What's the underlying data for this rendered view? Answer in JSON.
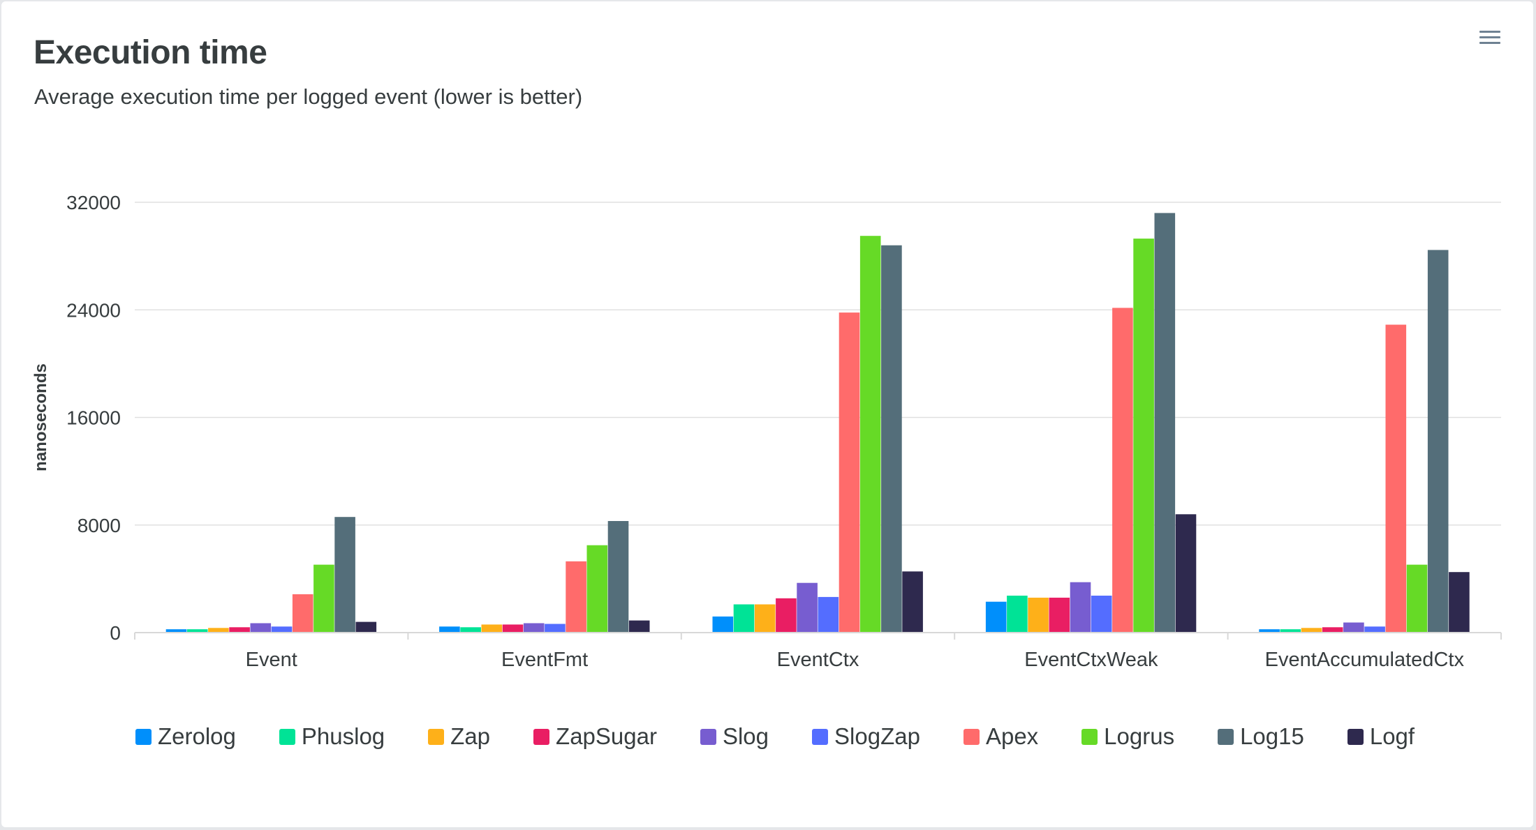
{
  "title": "Execution time",
  "subtitle": "Average execution time per logged event (lower is better)",
  "menu_icon": "hamburger-menu-icon",
  "chart_data": {
    "type": "bar",
    "categories": [
      "Event",
      "EventFmt",
      "EventCtx",
      "EventCtxWeak",
      "EventAccumulatedCtx"
    ],
    "ylabel": "nanoseconds",
    "ylim": [
      0,
      32000
    ],
    "yticks": [
      "0",
      "8000",
      "16000",
      "24000",
      "32000"
    ],
    "grid": true,
    "legend": "bottom",
    "series": [
      {
        "name": "Zerolog",
        "color": "#008ffb",
        "values": [
          250,
          450,
          1200,
          2300,
          250
        ]
      },
      {
        "name": "Phuslog",
        "color": "#00e396",
        "values": [
          250,
          400,
          2100,
          2750,
          250
        ]
      },
      {
        "name": "Zap",
        "color": "#feb019",
        "values": [
          350,
          600,
          2100,
          2600,
          350
        ]
      },
      {
        "name": "ZapSugar",
        "color": "#e91e63",
        "values": [
          400,
          600,
          2550,
          2600,
          400
        ]
      },
      {
        "name": "Slog",
        "color": "#775dd0",
        "values": [
          700,
          700,
          3700,
          3750,
          750
        ]
      },
      {
        "name": "SlogZap",
        "color": "#546dff",
        "values": [
          450,
          650,
          2650,
          2750,
          450
        ]
      },
      {
        "name": "Apex",
        "color": "#ff6b6b",
        "values": [
          2850,
          5300,
          23800,
          24150,
          22900
        ]
      },
      {
        "name": "Logrus",
        "color": "#66da26",
        "values": [
          5050,
          6500,
          29500,
          29300,
          5050
        ]
      },
      {
        "name": "Log15",
        "color": "#546e7a",
        "values": [
          8600,
          8300,
          28800,
          31200,
          28450
        ]
      },
      {
        "name": "Logf",
        "color": "#2e294e",
        "values": [
          800,
          900,
          4550,
          8800,
          4500
        ]
      }
    ]
  }
}
